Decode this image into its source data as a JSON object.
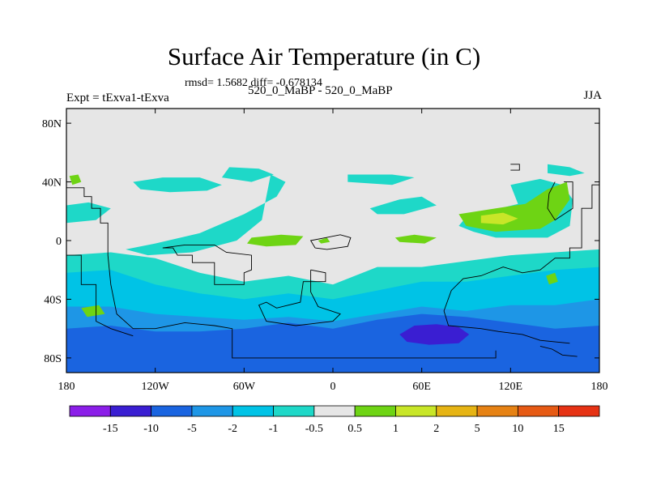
{
  "chart_data": {
    "type": "heatmap",
    "title": "Surface Air Temperature (in C)",
    "stats_text": "rmsd= 1.5682 diff= -0.678134",
    "left_label": "Expt = tExva1-tExva",
    "center_label": "520_0_MaBP - 520_0_MaBP",
    "right_label": "JJA",
    "xlim": [
      -180,
      180
    ],
    "ylim": [
      -90,
      90
    ],
    "x_ticks": [
      {
        "value": -180,
        "label": "180"
      },
      {
        "value": -120,
        "label": "120W"
      },
      {
        "value": -60,
        "label": "60W"
      },
      {
        "value": 0,
        "label": "0"
      },
      {
        "value": 60,
        "label": "60E"
      },
      {
        "value": 120,
        "label": "120E"
      },
      {
        "value": 180,
        "label": "180"
      }
    ],
    "y_ticks": [
      {
        "value": 80,
        "label": "80N"
      },
      {
        "value": 40,
        "label": "40N"
      },
      {
        "value": 0,
        "label": "0"
      },
      {
        "value": -40,
        "label": "40S"
      },
      {
        "value": -80,
        "label": "80S"
      }
    ],
    "colorbar": {
      "colors": [
        "#8b1ee8",
        "#3a1ed2",
        "#1a64e0",
        "#1e96e6",
        "#00c3e6",
        "#1ed8c8",
        "#e6e6e6",
        "#6ed414",
        "#c8e628",
        "#e6b414",
        "#e68214",
        "#e65a14",
        "#e63214"
      ],
      "labels": [
        "-15",
        "-10",
        "-5",
        "-2",
        "-1",
        "-0.5",
        "0.5",
        "1",
        "2",
        "5",
        "10",
        "15"
      ]
    },
    "regions": [
      {
        "level": 5,
        "points": [
          [
            -180,
            -10
          ],
          [
            -150,
            -8
          ],
          [
            -120,
            -12
          ],
          [
            -90,
            -22
          ],
          [
            -60,
            -28
          ],
          [
            -30,
            -24
          ],
          [
            0,
            -30
          ],
          [
            30,
            -18
          ],
          [
            60,
            -18
          ],
          [
            90,
            -14
          ],
          [
            120,
            -10
          ],
          [
            150,
            -8
          ],
          [
            180,
            -6
          ],
          [
            180,
            -90
          ],
          [
            -180,
            -90
          ]
        ]
      },
      {
        "level": 4,
        "points": [
          [
            -180,
            -22
          ],
          [
            -150,
            -20
          ],
          [
            -120,
            -30
          ],
          [
            -90,
            -36
          ],
          [
            -60,
            -40
          ],
          [
            -30,
            -36
          ],
          [
            0,
            -40
          ],
          [
            30,
            -34
          ],
          [
            60,
            -28
          ],
          [
            90,
            -28
          ],
          [
            120,
            -24
          ],
          [
            150,
            -20
          ],
          [
            180,
            -18
          ],
          [
            180,
            -90
          ],
          [
            -180,
            -90
          ]
        ]
      },
      {
        "level": 3,
        "points": [
          [
            -180,
            -45
          ],
          [
            -150,
            -45
          ],
          [
            -120,
            -50
          ],
          [
            -90,
            -52
          ],
          [
            -60,
            -54
          ],
          [
            -30,
            -52
          ],
          [
            0,
            -55
          ],
          [
            30,
            -50
          ],
          [
            60,
            -45
          ],
          [
            90,
            -48
          ],
          [
            120,
            -44
          ],
          [
            150,
            -44
          ],
          [
            180,
            -40
          ],
          [
            180,
            -90
          ],
          [
            -180,
            -90
          ]
        ]
      },
      {
        "level": 2,
        "points": [
          [
            -180,
            -60
          ],
          [
            -150,
            -58
          ],
          [
            -120,
            -62
          ],
          [
            -90,
            -62
          ],
          [
            -60,
            -60
          ],
          [
            -30,
            -56
          ],
          [
            0,
            -60
          ],
          [
            30,
            -54
          ],
          [
            60,
            -50
          ],
          [
            90,
            -52
          ],
          [
            120,
            -56
          ],
          [
            150,
            -60
          ],
          [
            180,
            -58
          ],
          [
            180,
            -90
          ],
          [
            -180,
            -90
          ]
        ]
      },
      {
        "level": 1,
        "points": [
          [
            45,
            -64
          ],
          [
            55,
            -58
          ],
          [
            70,
            -57
          ],
          [
            85,
            -59
          ],
          [
            92,
            -64
          ],
          [
            85,
            -70
          ],
          [
            65,
            -71
          ],
          [
            50,
            -69
          ]
        ]
      },
      {
        "level": 5,
        "points": [
          [
            -135,
            40
          ],
          [
            -115,
            43
          ],
          [
            -90,
            43
          ],
          [
            -75,
            38
          ],
          [
            -85,
            34
          ],
          [
            -110,
            33
          ],
          [
            -130,
            35
          ]
        ]
      },
      {
        "level": 5,
        "points": [
          [
            -42,
            45
          ],
          [
            -32,
            40
          ],
          [
            -38,
            30
          ],
          [
            -60,
            18
          ],
          [
            -90,
            5
          ],
          [
            -120,
            -2
          ],
          [
            -140,
            -6
          ],
          [
            -125,
            -10
          ],
          [
            -95,
            -8
          ],
          [
            -65,
            0
          ],
          [
            -48,
            14
          ],
          [
            -45,
            30
          ]
        ]
      },
      {
        "level": 5,
        "points": [
          [
            -70,
            50
          ],
          [
            -50,
            49
          ],
          [
            -40,
            45
          ],
          [
            -55,
            40
          ],
          [
            -75,
            43
          ]
        ]
      },
      {
        "level": 5,
        "points": [
          [
            10,
            45
          ],
          [
            40,
            45
          ],
          [
            55,
            43
          ],
          [
            40,
            38
          ],
          [
            10,
            40
          ]
        ]
      },
      {
        "level": 5,
        "points": [
          [
            25,
            22
          ],
          [
            45,
            28
          ],
          [
            60,
            30
          ],
          [
            70,
            24
          ],
          [
            48,
            18
          ],
          [
            30,
            18
          ]
        ]
      },
      {
        "level": 5,
        "points": [
          [
            120,
            38
          ],
          [
            140,
            42
          ],
          [
            155,
            38
          ],
          [
            162,
            28
          ],
          [
            160,
            10
          ],
          [
            145,
            2
          ],
          [
            110,
            2
          ],
          [
            95,
            6
          ],
          [
            85,
            10
          ],
          [
            90,
            16
          ],
          [
            105,
            20
          ],
          [
            125,
            25
          ]
        ]
      },
      {
        "level": 5,
        "points": [
          [
            -180,
            24
          ],
          [
            -165,
            26
          ],
          [
            -150,
            22
          ],
          [
            -160,
            14
          ],
          [
            -180,
            12
          ]
        ]
      },
      {
        "level": 5,
        "points": [
          [
            145,
            52
          ],
          [
            160,
            50
          ],
          [
            170,
            46
          ],
          [
            160,
            44
          ],
          [
            145,
            46
          ]
        ]
      },
      {
        "level": 7,
        "points": [
          [
            -178,
            44
          ],
          [
            -172,
            45
          ],
          [
            -170,
            40
          ],
          [
            -176,
            38
          ]
        ]
      },
      {
        "level": 7,
        "points": [
          [
            -55,
            2
          ],
          [
            -35,
            4
          ],
          [
            -20,
            3
          ],
          [
            -25,
            -3
          ],
          [
            -45,
            -4
          ],
          [
            -58,
            -2
          ]
        ]
      },
      {
        "level": 7,
        "points": [
          [
            42,
            2
          ],
          [
            55,
            4
          ],
          [
            70,
            2
          ],
          [
            62,
            -2
          ],
          [
            45,
            -1
          ]
        ]
      },
      {
        "level": 7,
        "points": [
          [
            -10,
            0
          ],
          [
            -4,
            2
          ],
          [
            -2,
            -1
          ],
          [
            -8,
            -2
          ]
        ]
      },
      {
        "level": 7,
        "points": [
          [
            85,
            18
          ],
          [
            110,
            22
          ],
          [
            130,
            25
          ],
          [
            145,
            35
          ],
          [
            158,
            40
          ],
          [
            160,
            28
          ],
          [
            150,
            14
          ],
          [
            140,
            8
          ],
          [
            110,
            6
          ],
          [
            90,
            10
          ]
        ]
      },
      {
        "level": 8,
        "points": [
          [
            100,
            17
          ],
          [
            115,
            19
          ],
          [
            125,
            15
          ],
          [
            115,
            11
          ],
          [
            100,
            12
          ]
        ]
      },
      {
        "level": 7,
        "points": [
          [
            -170,
            -46
          ],
          [
            -158,
            -44
          ],
          [
            -154,
            -50
          ],
          [
            -166,
            -52
          ]
        ]
      },
      {
        "level": 7,
        "points": [
          [
            144,
            -24
          ],
          [
            150,
            -22
          ],
          [
            152,
            -28
          ],
          [
            146,
            -30
          ]
        ]
      }
    ],
    "coastlines": [
      [
        [
          -180,
          36
        ],
        [
          -168,
          36
        ],
        [
          -168,
          30
        ],
        [
          -163,
          30
        ],
        [
          -163,
          22
        ],
        [
          -157,
          22
        ],
        [
          -157,
          12
        ],
        [
          -152,
          12
        ],
        [
          -152,
          -10
        ],
        [
          -150,
          -30
        ],
        [
          -146,
          -50
        ],
        [
          -135,
          -60
        ],
        [
          -120,
          -60
        ],
        [
          -100,
          -56
        ],
        [
          -80,
          -58
        ],
        [
          -68,
          -60
        ],
        [
          -68,
          -80
        ],
        [
          80,
          -80
        ],
        [
          110,
          -80
        ],
        [
          110,
          -75
        ]
      ],
      [
        [
          -180,
          -10
        ],
        [
          -170,
          -10
        ],
        [
          -170,
          -30
        ],
        [
          -160,
          -30
        ],
        [
          -160,
          -55
        ],
        [
          -150,
          -60
        ],
        [
          -135,
          -65
        ]
      ],
      [
        [
          -115,
          -5
        ],
        [
          -108,
          -5
        ],
        [
          -105,
          -10
        ],
        [
          -95,
          -10
        ],
        [
          -95,
          -15
        ],
        [
          -80,
          -15
        ],
        [
          -80,
          -30
        ],
        [
          -60,
          -30
        ],
        [
          -60,
          -22
        ],
        [
          -55,
          -20
        ],
        [
          -55,
          -10
        ],
        [
          -72,
          -8
        ],
        [
          -80,
          -3
        ],
        [
          -100,
          -3
        ],
        [
          -115,
          -5
        ]
      ],
      [
        [
          -15,
          -20
        ],
        [
          -5,
          -22
        ],
        [
          -5,
          -28
        ],
        [
          -20,
          -28
        ],
        [
          -22,
          -42
        ],
        [
          -38,
          -46
        ],
        [
          -45,
          -42
        ],
        [
          -50,
          -44
        ],
        [
          -45,
          -55
        ],
        [
          -25,
          -58
        ],
        [
          0,
          -55
        ],
        [
          5,
          -50
        ],
        [
          -10,
          -45
        ],
        [
          -15,
          -35
        ],
        [
          -15,
          -20
        ]
      ],
      [
        [
          -12,
          -5
        ],
        [
          -4,
          -6
        ],
        [
          10,
          -4
        ],
        [
          12,
          2
        ],
        [
          5,
          4
        ],
        [
          -5,
          2
        ],
        [
          -15,
          0
        ],
        [
          -12,
          -5
        ]
      ],
      [
        [
          120,
          52
        ],
        [
          126,
          52
        ],
        [
          126,
          48
        ],
        [
          120,
          48
        ]
      ],
      [
        [
          180,
          38
        ],
        [
          175,
          38
        ],
        [
          175,
          22
        ],
        [
          168,
          22
        ],
        [
          168,
          -5
        ],
        [
          160,
          -5
        ],
        [
          160,
          -12
        ],
        [
          150,
          -12
        ],
        [
          140,
          -20
        ],
        [
          128,
          -22
        ],
        [
          115,
          -18
        ],
        [
          100,
          -24
        ],
        [
          88,
          -26
        ],
        [
          80,
          -34
        ],
        [
          75,
          -48
        ],
        [
          78,
          -58
        ],
        [
          100,
          -60
        ],
        [
          112,
          -62
        ],
        [
          128,
          -64
        ],
        [
          140,
          -68
        ],
        [
          160,
          -70
        ]
      ],
      [
        [
          156,
          40
        ],
        [
          162,
          40
        ],
        [
          162,
          22
        ],
        [
          150,
          14
        ],
        [
          145,
          22
        ],
        [
          146,
          32
        ],
        [
          150,
          40
        ]
      ],
      [
        [
          140,
          -72
        ],
        [
          148,
          -74
        ],
        [
          155,
          -78
        ],
        [
          165,
          -79
        ]
      ]
    ]
  }
}
